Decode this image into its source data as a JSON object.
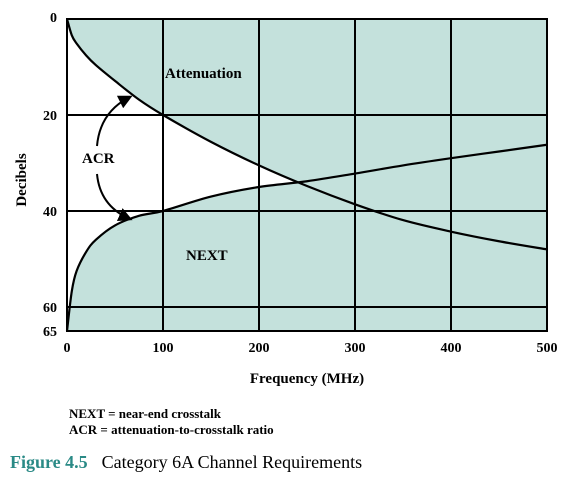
{
  "chart_data": {
    "type": "area",
    "xlabel": "Frequency (MHz)",
    "ylabel": "Decibels",
    "xlim": [
      0,
      500
    ],
    "ylim": [
      0,
      65
    ],
    "y_inverted": true,
    "x_ticks": [
      "0",
      "100",
      "200",
      "300",
      "400",
      "500"
    ],
    "y_ticks": [
      "0",
      "20",
      "40",
      "60",
      "65"
    ],
    "grid": true,
    "fill_color": "#c4e1dc",
    "series": [
      {
        "name": "Attenuation",
        "x": [
          0,
          5,
          10,
          20,
          30,
          50,
          75,
          100,
          150,
          200,
          250,
          300,
          350,
          400,
          450,
          500
        ],
        "y": [
          0,
          3.4,
          5.1,
          7.6,
          9.6,
          12.9,
          16.8,
          20.0,
          25.6,
          30.5,
          34.8,
          38.6,
          41.9,
          44.3,
          46.3,
          48.0
        ]
      },
      {
        "name": "NEXT",
        "x": [
          0,
          5,
          10,
          20,
          30,
          50,
          75,
          100,
          150,
          200,
          250,
          300,
          350,
          400,
          450,
          500
        ],
        "y": [
          65,
          56.7,
          52.5,
          48.5,
          46.0,
          43.0,
          41.0,
          40.0,
          37.0,
          35.0,
          33.8,
          32.2,
          30.5,
          29.0,
          27.6,
          26.2
        ]
      }
    ],
    "annotations": [
      {
        "text": "Attenuation"
      },
      {
        "text": "ACR"
      },
      {
        "text": "NEXT"
      }
    ]
  },
  "legend": {
    "line1": "NEXT = near-end crosstalk",
    "line2": "ACR = attenuation-to-crosstalk ratio"
  },
  "caption": {
    "number": "Figure 4.5",
    "text": "Category 6A Channel Requirements"
  }
}
